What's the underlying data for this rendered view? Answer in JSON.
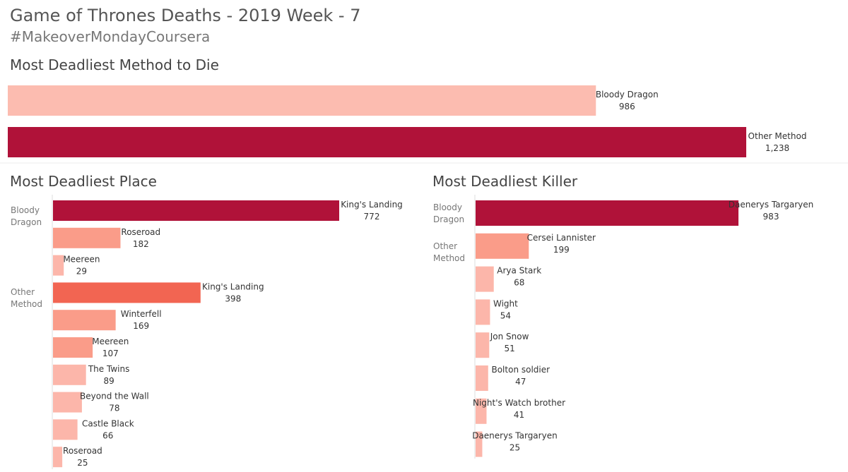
{
  "title": "Game of Thrones Deaths - 2019 Week - 7",
  "subtitle": "#MakeoverMondayCoursera",
  "colors": {
    "dark": "#b01239",
    "mid": "#f26552",
    "light": "#fa9c89",
    "lighter": "#fcb6aa",
    "method_light": "#fcbcb0"
  },
  "chart_data": [
    {
      "type": "bar",
      "title": "Most Deadliest Method to Die",
      "orientation": "horizontal",
      "categories": [
        "Bloody Dragon",
        "Other Method"
      ],
      "values": [
        986,
        1238
      ],
      "value_labels": [
        "986",
        "1,238"
      ]
    },
    {
      "type": "bar",
      "title": "Most Deadliest Place",
      "orientation": "horizontal",
      "groups": [
        {
          "name_lines": [
            "Bloody",
            "Dragon"
          ],
          "items": [
            {
              "label": "King's Landing",
              "value": 772,
              "value_label": "772"
            },
            {
              "label": "Roseroad",
              "value": 182,
              "value_label": "182"
            },
            {
              "label": "Meereen",
              "value": 29,
              "value_label": "29"
            }
          ]
        },
        {
          "name_lines": [
            "Other",
            "Method"
          ],
          "items": [
            {
              "label": "King's Landing",
              "value": 398,
              "value_label": "398"
            },
            {
              "label": "Winterfell",
              "value": 169,
              "value_label": "169"
            },
            {
              "label": "Meereen",
              "value": 107,
              "value_label": "107"
            },
            {
              "label": "The Twins",
              "value": 89,
              "value_label": "89"
            },
            {
              "label": "Beyond the Wall",
              "value": 78,
              "value_label": "78"
            },
            {
              "label": "Castle Black",
              "value": 66,
              "value_label": "66"
            },
            {
              "label": "Roseroad",
              "value": 25,
              "value_label": "25"
            }
          ]
        }
      ]
    },
    {
      "type": "bar",
      "title": "Most Deadliest Killer",
      "orientation": "horizontal",
      "groups": [
        {
          "name_lines": [
            "Bloody",
            "Dragon"
          ],
          "items": [
            {
              "label": "Daenerys Targaryen",
              "value": 983,
              "value_label": "983"
            }
          ]
        },
        {
          "name_lines": [
            "Other",
            "Method"
          ],
          "items": [
            {
              "label": "Cersei Lannister",
              "value": 199,
              "value_label": "199"
            },
            {
              "label": "Arya Stark",
              "value": 68,
              "value_label": "68"
            },
            {
              "label": "Wight",
              "value": 54,
              "value_label": "54"
            },
            {
              "label": "Jon Snow",
              "value": 51,
              "value_label": "51"
            },
            {
              "label": "Bolton soldier",
              "value": 47,
              "value_label": "47"
            },
            {
              "label": "Night's Watch brother",
              "value": 41,
              "value_label": "41"
            },
            {
              "label": "Daenerys Targaryen",
              "value": 25,
              "value_label": "25"
            }
          ]
        }
      ]
    }
  ]
}
